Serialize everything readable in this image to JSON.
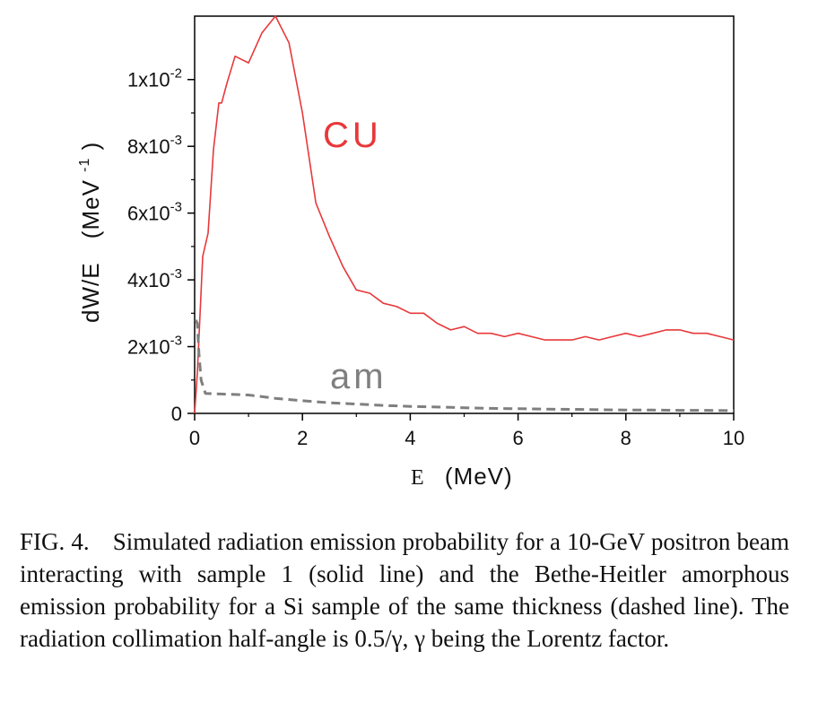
{
  "chart_data": {
    "type": "line",
    "xlabel_prefix": "E",
    "xlabel_unit": "(MeV)",
    "ylabel_main": "dW/E",
    "ylabel_unit": "(MeV",
    "ylabel_unit_exp": "-1",
    "ylabel_unit_close": ")",
    "xlim": [
      0,
      10
    ],
    "ylim": [
      0,
      0.0119
    ],
    "x_ticks": [
      "0",
      "2",
      "4",
      "6",
      "8",
      "10"
    ],
    "y_ticks": [
      {
        "value": 0,
        "mantissa": "0",
        "exp": ""
      },
      {
        "value": 0.002,
        "mantissa": "2x10",
        "exp": "-3"
      },
      {
        "value": 0.004,
        "mantissa": "4x10",
        "exp": "-3"
      },
      {
        "value": 0.006,
        "mantissa": "6x10",
        "exp": "-3"
      },
      {
        "value": 0.008,
        "mantissa": "8x10",
        "exp": "-3"
      },
      {
        "value": 0.01,
        "mantissa": "1x10",
        "exp": "-2"
      }
    ],
    "grid": false,
    "series": [
      {
        "name": "CU",
        "color": "#e8383a",
        "style": "solid",
        "x": [
          0.0,
          0.05,
          0.15,
          0.25,
          0.35,
          0.45,
          0.5,
          0.6,
          0.75,
          1.0,
          1.25,
          1.5,
          1.75,
          2.0,
          2.25,
          2.5,
          2.75,
          3.0,
          3.25,
          3.5,
          3.75,
          4.0,
          4.25,
          4.5,
          4.75,
          5.0,
          5.25,
          5.5,
          5.75,
          6.0,
          6.25,
          6.5,
          6.75,
          7.0,
          7.25,
          7.5,
          7.75,
          8.0,
          8.25,
          8.5,
          8.75,
          9.0,
          9.25,
          9.5,
          9.75,
          10.0
        ],
        "y": [
          0.0,
          0.0012,
          0.0047,
          0.0054,
          0.0079,
          0.0093,
          0.0093,
          0.0099,
          0.0107,
          0.0105,
          0.0114,
          0.0119,
          0.0111,
          0.009,
          0.0063,
          0.0053,
          0.0044,
          0.0037,
          0.0036,
          0.0033,
          0.0032,
          0.003,
          0.003,
          0.0027,
          0.0025,
          0.0026,
          0.0024,
          0.0024,
          0.0023,
          0.0024,
          0.0023,
          0.0022,
          0.0022,
          0.0022,
          0.0023,
          0.0022,
          0.0023,
          0.0024,
          0.0023,
          0.0024,
          0.0025,
          0.0025,
          0.0024,
          0.0024,
          0.0023,
          0.0022
        ]
      },
      {
        "name": "am",
        "color": "#7f7f80",
        "style": "dashed",
        "x": [
          0.02,
          0.05,
          0.08,
          0.12,
          0.2,
          0.5,
          1.0,
          1.5,
          2.0,
          2.5,
          3.0,
          3.5,
          4.0,
          4.5,
          5.0,
          5.5,
          6.0,
          6.5,
          7.0,
          7.5,
          8.0,
          8.5,
          9.0,
          9.5,
          10.0
        ],
        "y": [
          0.0028,
          0.0027,
          0.0018,
          0.001,
          0.0006,
          0.00058,
          0.00055,
          0.00045,
          0.00038,
          0.00032,
          0.00028,
          0.00024,
          0.00021,
          0.00019,
          0.00017,
          0.00015,
          0.00014,
          0.00013,
          0.00012,
          0.00011,
          0.0001,
          0.0001,
          9e-05,
          9e-05,
          8e-05
        ]
      }
    ]
  },
  "caption": {
    "label": "FIG. 4.",
    "text": "Simulated radiation emission probability for a 10-GeV positron beam interacting with sample 1 (solid line) and the Bethe-Heitler amorphous emission probability for a Si sample of the same thickness (dashed line). The radiation collimation half-angle is 0.5/γ, γ being the Lorentz factor."
  }
}
